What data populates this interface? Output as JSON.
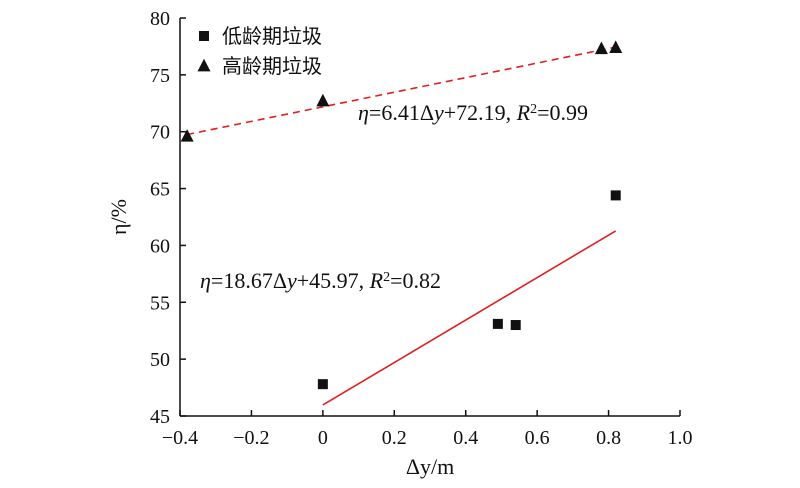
{
  "chart_data": {
    "type": "scatter",
    "xlabel": "Δy/m",
    "ylabel": "η/%",
    "xlim": [
      -0.4,
      1.0
    ],
    "ylim": [
      45,
      80
    ],
    "xticks": [
      -0.4,
      -0.2,
      0,
      0.2,
      0.4,
      0.6,
      0.8,
      1.0
    ],
    "xtick_labels": [
      "−0.4",
      "−0.2",
      "0",
      "0.2",
      "0.4",
      "0.6",
      "0.8",
      "1.0"
    ],
    "yticks": [
      45,
      50,
      55,
      60,
      65,
      70,
      75,
      80
    ],
    "ytick_labels": [
      "45",
      "50",
      "55",
      "60",
      "65",
      "70",
      "75",
      "80"
    ],
    "grid": false,
    "legend_position": "top-left",
    "series": [
      {
        "name": "低龄期垃圾",
        "marker": "square",
        "color": "#111111",
        "x": [
          0.0,
          0.49,
          0.54,
          0.82
        ],
        "y": [
          47.8,
          53.1,
          53.0,
          64.4
        ],
        "fit": {
          "slope": 18.67,
          "intercept": 45.97,
          "x_range": [
            0.0,
            0.82
          ],
          "color": "#e02020",
          "dash": "solid"
        }
      },
      {
        "name": "高龄期垃圾",
        "marker": "triangle",
        "color": "#111111",
        "x": [
          -0.38,
          0.0,
          0.78,
          0.82
        ],
        "y": [
          69.6,
          72.7,
          77.3,
          77.4
        ],
        "fit": {
          "slope": 6.41,
          "intercept": 72.19,
          "x_range": [
            -0.38,
            0.82
          ],
          "color": "#e02020",
          "dash": "dashed"
        }
      }
    ],
    "annotations": [
      {
        "series": 1,
        "position": "upper-right",
        "parts": [
          "η",
          "=6.41Δ",
          "y",
          "+72.19, ",
          "R",
          "2",
          "=0.99"
        ]
      },
      {
        "series": 0,
        "position": "middle-left",
        "parts": [
          "η",
          "=18.67Δ",
          "y",
          "+45.97, ",
          "R",
          "2",
          "=0.82"
        ]
      }
    ]
  }
}
